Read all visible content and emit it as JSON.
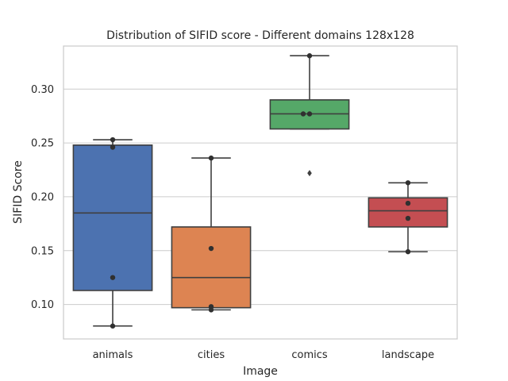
{
  "chart_data": {
    "type": "box",
    "title": "Distribution of SIFID score - Different domains 128x128",
    "xlabel": "Image",
    "ylabel": "SIFID Score",
    "ylim": [
      0.068,
      0.34
    ],
    "yticks": [
      0.1,
      0.15,
      0.2,
      0.25,
      0.3
    ],
    "ytick_labels": [
      "0.10",
      "0.15",
      "0.20",
      "0.25",
      "0.30"
    ],
    "grid": "horizontal",
    "categories": [
      "animals",
      "cities",
      "comics",
      "landscape"
    ],
    "boxes": [
      {
        "name": "animals",
        "color": "#4c72b0",
        "whisker_low": 0.08,
        "q1": 0.113,
        "median": 0.185,
        "q3": 0.248,
        "whisker_high": 0.253,
        "points": [
          0.253,
          0.246,
          0.125,
          0.08
        ],
        "outliers": []
      },
      {
        "name": "cities",
        "color": "#dd8452",
        "whisker_low": 0.095,
        "q1": 0.097,
        "median": 0.125,
        "q3": 0.172,
        "whisker_high": 0.236,
        "points": [
          0.236,
          0.152,
          0.098,
          0.095
        ],
        "outliers": []
      },
      {
        "name": "comics",
        "color": "#55a868",
        "whisker_low": 0.263,
        "q1": 0.263,
        "median": 0.277,
        "q3": 0.29,
        "whisker_high": 0.331,
        "points": [
          0.331,
          0.277,
          0.277
        ],
        "outliers": [
          0.222
        ]
      },
      {
        "name": "landscape",
        "color": "#c44e52",
        "whisker_low": 0.149,
        "q1": 0.172,
        "median": 0.187,
        "q3": 0.199,
        "whisker_high": 0.213,
        "points": [
          0.213,
          0.194,
          0.18,
          0.149
        ],
        "outliers": []
      }
    ]
  }
}
